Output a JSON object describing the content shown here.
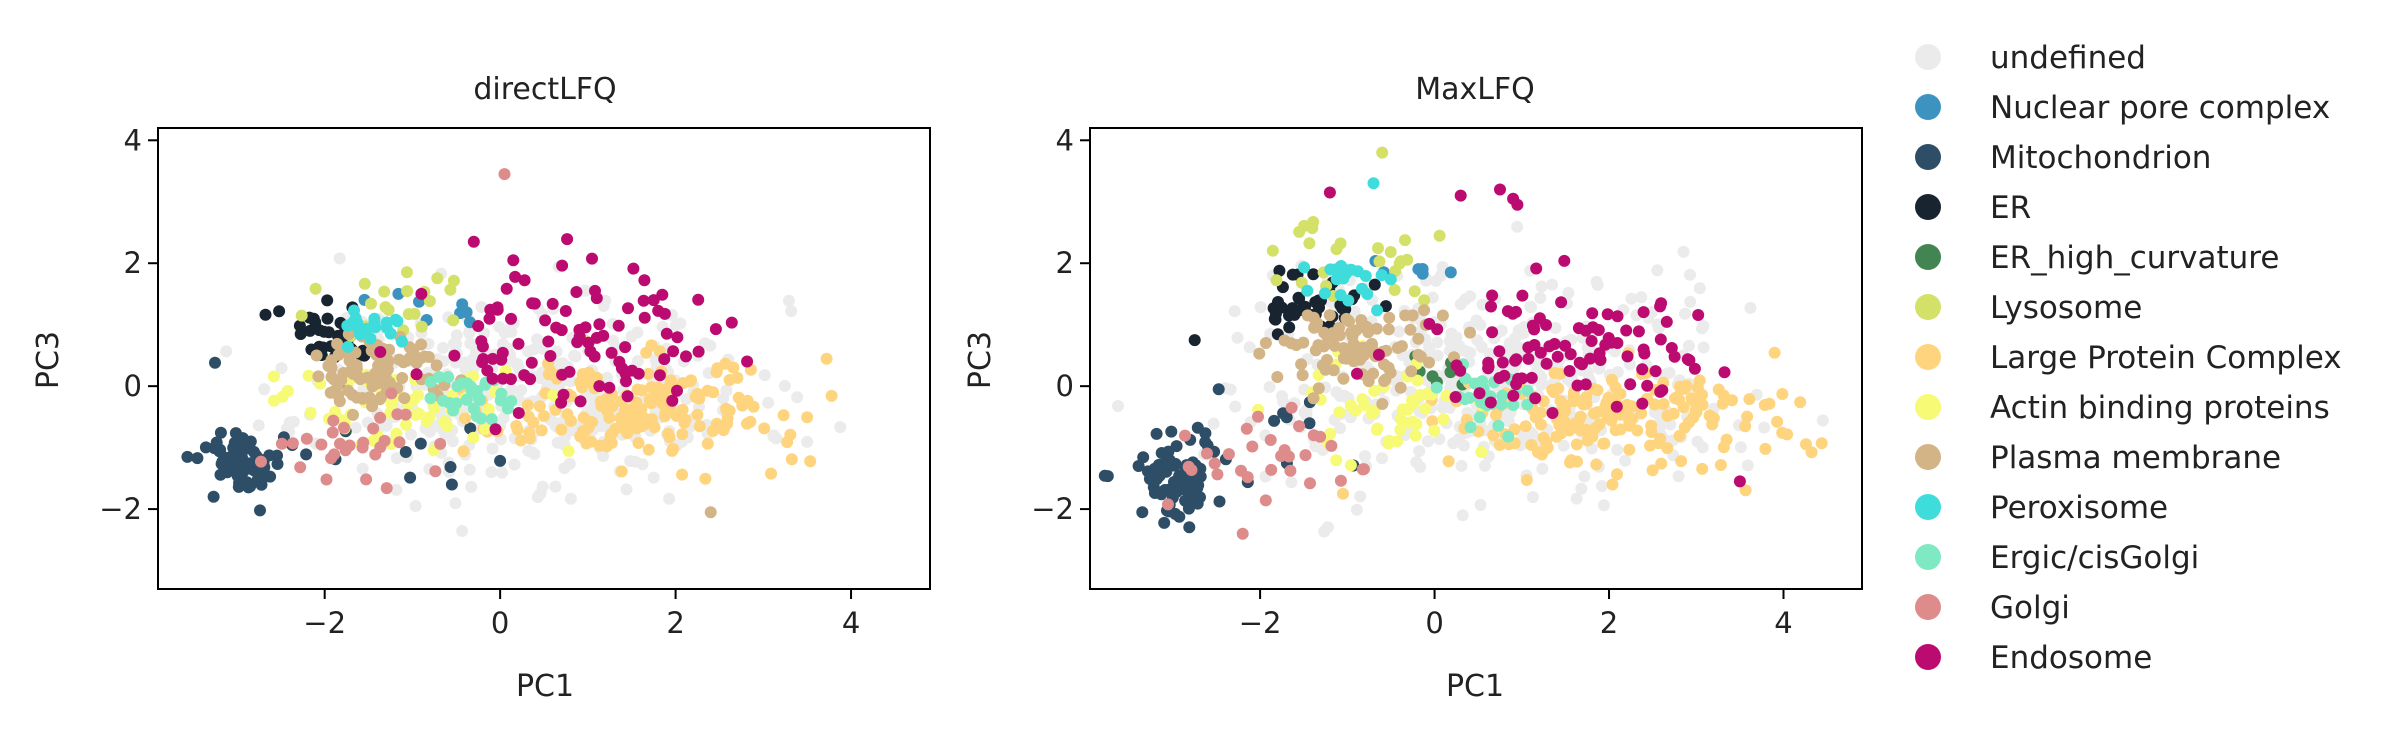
{
  "chart_data": [
    {
      "type": "scatter",
      "title": "directLFQ",
      "xlabel": "PC1",
      "ylabel": "PC3",
      "xlim": [
        -3.9,
        4.9
      ],
      "ylim": [
        -3.3,
        4.2
      ],
      "xticks": [
        -2,
        0,
        2,
        4
      ],
      "yticks": [
        -2,
        0,
        2,
        4
      ],
      "grid": false,
      "clusters": [
        {
          "series": "undefined",
          "cx": 0.4,
          "cy": -0.1,
          "sx": 1.25,
          "sy": 0.75,
          "n": 380,
          "seed": 11
        },
        {
          "series": "Mitochondrion",
          "cx": -2.9,
          "cy": -1.25,
          "sx": 0.25,
          "sy": 0.25,
          "n": 70,
          "seed": 12
        },
        {
          "series": "Mitochondrion",
          "cx": -1.0,
          "cy": -1.0,
          "sx": 0.9,
          "sy": 0.35,
          "n": 10,
          "seed": 13
        },
        {
          "series": "ER",
          "cx": -1.8,
          "cy": 0.85,
          "sx": 0.3,
          "sy": 0.25,
          "n": 35,
          "seed": 14
        },
        {
          "series": "Nuclear pore complex",
          "cx": -0.6,
          "cy": 1.3,
          "sx": 0.3,
          "sy": 0.2,
          "n": 8,
          "seed": 15
        },
        {
          "series": "Lysosome",
          "cx": -1.2,
          "cy": 1.3,
          "sx": 0.5,
          "sy": 0.3,
          "n": 22,
          "seed": 16
        },
        {
          "series": "Large Protein Complex",
          "cx": 1.5,
          "cy": -0.4,
          "sx": 0.85,
          "sy": 0.4,
          "n": 180,
          "seed": 17
        },
        {
          "series": "Actin binding proteins",
          "cx": -1.1,
          "cy": -0.35,
          "sx": 0.65,
          "sy": 0.35,
          "n": 55,
          "seed": 18
        },
        {
          "series": "Plasma membrane",
          "cx": -1.4,
          "cy": 0.25,
          "sx": 0.35,
          "sy": 0.3,
          "n": 90,
          "seed": 19
        },
        {
          "series": "Peroxisome",
          "cx": -1.5,
          "cy": 1.0,
          "sx": 0.18,
          "sy": 0.15,
          "n": 22,
          "seed": 20
        },
        {
          "series": "Ergic/cisGolgi",
          "cx": -0.3,
          "cy": -0.2,
          "sx": 0.3,
          "sy": 0.2,
          "n": 28,
          "seed": 21
        },
        {
          "series": "Golgi",
          "cx": -1.8,
          "cy": -1.0,
          "sx": 0.5,
          "sy": 0.35,
          "n": 30,
          "seed": 22
        },
        {
          "series": "Endosome",
          "cx": 0.8,
          "cy": 0.7,
          "sx": 0.8,
          "sy": 0.55,
          "n": 95,
          "seed": 23
        }
      ],
      "points": [
        {
          "series": "Golgi",
          "x": 0.05,
          "y": 3.45
        },
        {
          "series": "Mitochondrion",
          "x": -3.25,
          "y": 0.38
        },
        {
          "series": "Mitochondrion",
          "x": -0.55,
          "y": -1.6
        },
        {
          "series": "Plasma membrane",
          "x": 2.4,
          "y": -2.05
        },
        {
          "series": "Endosome",
          "x": -0.3,
          "y": 2.35
        },
        {
          "series": "Endosome",
          "x": 0.15,
          "y": 2.05
        },
        {
          "series": "Endosome",
          "x": 1.75,
          "y": 1.4
        }
      ]
    },
    {
      "type": "scatter",
      "title": "MaxLFQ",
      "xlabel": "PC1",
      "ylabel": "PC3",
      "xlim": [
        -3.95,
        4.9
      ],
      "ylim": [
        -3.3,
        4.2
      ],
      "xticks": [
        -2,
        0,
        2,
        4
      ],
      "yticks": [
        -2,
        0,
        2,
        4
      ],
      "grid": false,
      "clusters": [
        {
          "series": "undefined",
          "cx": 0.6,
          "cy": 0.1,
          "sx": 1.4,
          "sy": 0.85,
          "n": 420,
          "seed": 31
        },
        {
          "series": "Mitochondrion",
          "cx": -2.95,
          "cy": -1.45,
          "sx": 0.3,
          "sy": 0.35,
          "n": 70,
          "seed": 32
        },
        {
          "series": "Mitochondrion",
          "cx": -1.6,
          "cy": -0.9,
          "sx": 0.6,
          "sy": 0.45,
          "n": 10,
          "seed": 33
        },
        {
          "series": "ER",
          "cx": -1.4,
          "cy": 1.3,
          "sx": 0.35,
          "sy": 0.3,
          "n": 40,
          "seed": 34
        },
        {
          "series": "Nuclear pore complex",
          "cx": -0.2,
          "cy": 1.9,
          "sx": 0.3,
          "sy": 0.2,
          "n": 6,
          "seed": 35
        },
        {
          "series": "ER_high_curvature",
          "cx": 0.1,
          "cy": 0.3,
          "sx": 0.2,
          "sy": 0.15,
          "n": 8,
          "seed": 36
        },
        {
          "series": "Lysosome",
          "cx": -0.9,
          "cy": 2.0,
          "sx": 0.45,
          "sy": 0.35,
          "n": 26,
          "seed": 37
        },
        {
          "series": "Large Protein Complex",
          "cx": 2.0,
          "cy": -0.5,
          "sx": 1.0,
          "sy": 0.4,
          "n": 190,
          "seed": 38
        },
        {
          "series": "Actin binding proteins",
          "cx": -0.6,
          "cy": -0.3,
          "sx": 0.6,
          "sy": 0.45,
          "n": 50,
          "seed": 39
        },
        {
          "series": "Plasma membrane",
          "cx": -0.9,
          "cy": 0.6,
          "sx": 0.45,
          "sy": 0.3,
          "n": 95,
          "seed": 40
        },
        {
          "series": "Peroxisome",
          "cx": -1.0,
          "cy": 1.7,
          "sx": 0.3,
          "sy": 0.2,
          "n": 22,
          "seed": 41
        },
        {
          "series": "Ergic/cisGolgi",
          "cx": 0.5,
          "cy": -0.15,
          "sx": 0.3,
          "sy": 0.25,
          "n": 28,
          "seed": 42
        },
        {
          "series": "Golgi",
          "cx": -2.1,
          "cy": -1.1,
          "sx": 0.6,
          "sy": 0.45,
          "n": 30,
          "seed": 43
        },
        {
          "series": "Endosome",
          "cx": 1.4,
          "cy": 0.6,
          "sx": 0.9,
          "sy": 0.6,
          "n": 95,
          "seed": 44
        }
      ],
      "points": [
        {
          "series": "Lysosome",
          "x": -0.6,
          "y": 3.8
        },
        {
          "series": "Endosome",
          "x": -1.2,
          "y": 3.15
        },
        {
          "series": "Endosome",
          "x": 0.3,
          "y": 3.1
        },
        {
          "series": "Endosome",
          "x": 0.75,
          "y": 3.2
        },
        {
          "series": "Endosome",
          "x": 0.9,
          "y": 3.05
        },
        {
          "series": "Endosome",
          "x": 0.95,
          "y": 2.95
        },
        {
          "series": "Peroxisome",
          "x": -0.7,
          "y": 3.3
        },
        {
          "series": "Mitochondrion",
          "x": -3.35,
          "y": -2.05
        },
        {
          "series": "ER",
          "x": -2.75,
          "y": 0.75
        },
        {
          "series": "Golgi",
          "x": -2.2,
          "y": -2.4
        },
        {
          "series": "Large Protein Complex",
          "x": -1.05,
          "y": -1.75
        },
        {
          "series": "Endosome",
          "x": 3.5,
          "y": -1.55
        }
      ]
    }
  ],
  "legend": {
    "placement": "right",
    "entries": [
      {
        "label": "undefined",
        "color": "#ebebeb"
      },
      {
        "label": "Nuclear pore complex",
        "color": "#3d93bf"
      },
      {
        "label": "Mitochondrion",
        "color": "#2d4e66"
      },
      {
        "label": "ER",
        "color": "#182430"
      },
      {
        "label": "ER_high_curvature",
        "color": "#428552"
      },
      {
        "label": "Lysosome",
        "color": "#d4e168"
      },
      {
        "label": "Large Protein Complex",
        "color": "#fed47f"
      },
      {
        "label": "Actin binding proteins",
        "color": "#f6fa74"
      },
      {
        "label": "Plasma membrane",
        "color": "#d2b487"
      },
      {
        "label": "Peroxisome",
        "color": "#3fdcdc"
      },
      {
        "label": "Ergic/cisGolgi",
        "color": "#7fe9c3"
      },
      {
        "label": "Golgi",
        "color": "#de8b8b"
      },
      {
        "label": "Endosome",
        "color": "#bb0a70"
      }
    ]
  }
}
